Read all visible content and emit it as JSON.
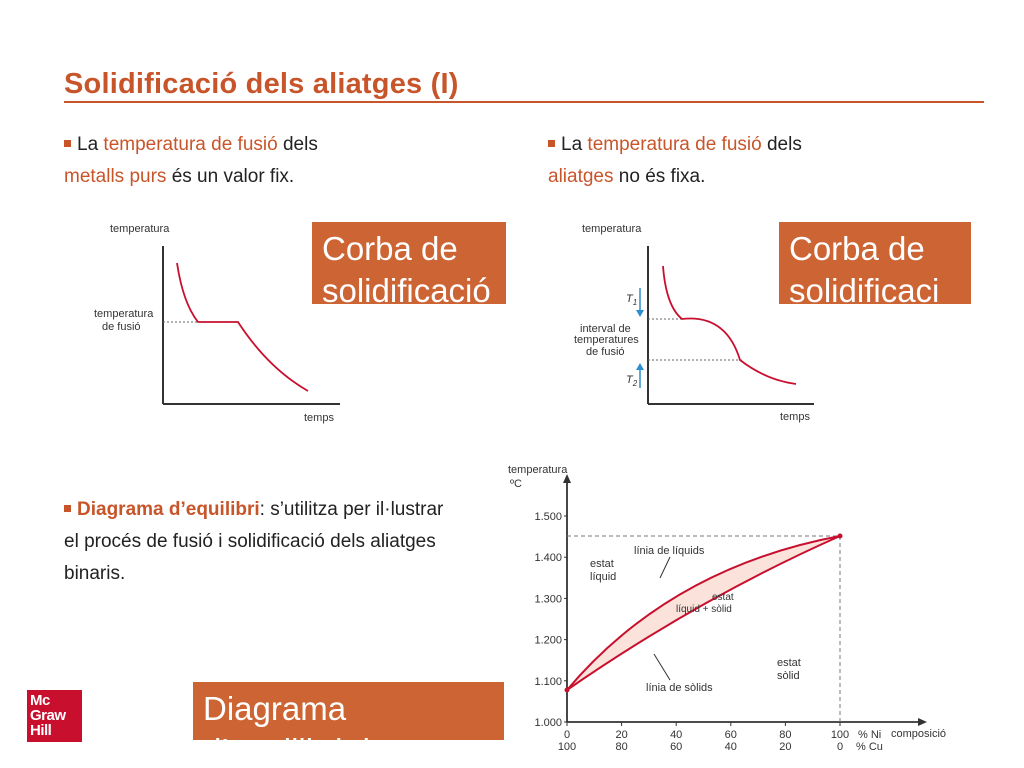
{
  "title": "Solidificació dels aliatges (I)",
  "left_bullet": {
    "part1": "La ",
    "hl1": "temperatura de fusió",
    "part2": " dels",
    "hl2": "metalls purs",
    "part3": " és un valor fix."
  },
  "right_bullet": {
    "part1": "La ",
    "hl1": "temperatura de fusió",
    "part2": " dels",
    "hl2": "aliatges",
    "part3": " no és fixa."
  },
  "box_curve_left": "Corba de solidificació",
  "box_curve_right": "Corba de solidificaci",
  "box_diagram": "Diagrama d’equilibri d",
  "diagram_bullet": {
    "hl": "Diagrama d’equilibri",
    "text": ": s’utilitza per il·lustrar el procés de fusió i solidificació dels aliatges binaris."
  },
  "graph_left": {
    "y_label": "temperatura",
    "x_label": "temps",
    "mark_label_1": "temperatura",
    "mark_label_2": "de fusió"
  },
  "graph_right": {
    "y_label": "temperatura",
    "x_label": "temps",
    "t1": "T",
    "t1_sub": "1",
    "t2": "T",
    "t2_sub": "2",
    "interval_1": "interval de",
    "interval_2": "temperatures",
    "interval_3": "de fusió"
  },
  "phase_diagram": {
    "y_label_1": "temperatura",
    "y_label_2": "ºC",
    "y_ticks": [
      "1.000",
      "1.100",
      "1.200",
      "1.300",
      "1.400",
      "1.500"
    ],
    "x_ticks_ni": [
      "0",
      "20",
      "40",
      "60",
      "80",
      "100"
    ],
    "x_ticks_cu": [
      "100",
      "80",
      "60",
      "40",
      "20",
      "0"
    ],
    "ni_label": "% Ni",
    "cu_label": "% Cu",
    "x_label": "composició",
    "liquid_line": "línia de líquids",
    "solid_line": "línia de sòlids",
    "liquid_state_1": "estat",
    "liquid_state_2": "líquid",
    "mixed_state_1": "estat",
    "mixed_state_2": "líquid + sòlid",
    "solid_state_1": "estat",
    "solid_state_2": "sòlid"
  },
  "logo": {
    "line1": "Mc",
    "line2": "Graw",
    "line3": "Hill"
  },
  "colors": {
    "accent": "#c8552a",
    "box": "#cd6434",
    "curve": "#c8102e",
    "fill": "#fbe3dc"
  }
}
